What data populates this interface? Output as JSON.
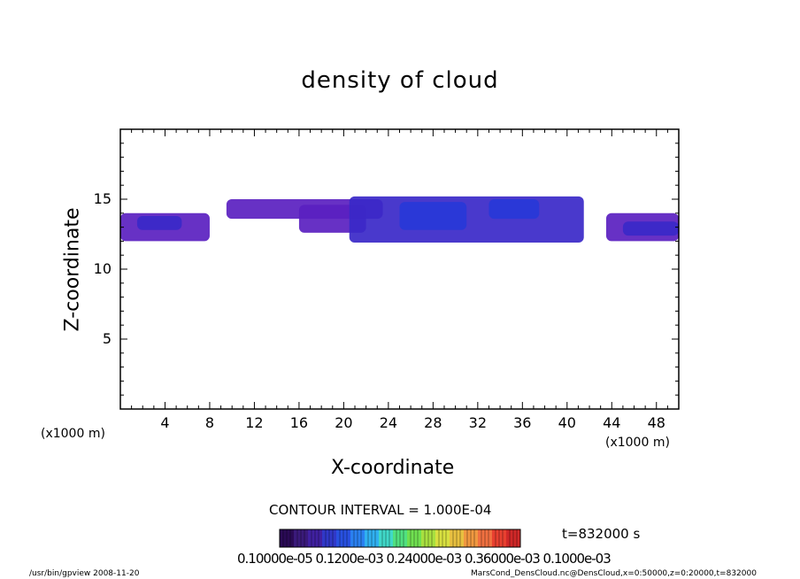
{
  "chart_data": {
    "type": "heatmap",
    "title": "density of cloud",
    "xlabel": "X-coordinate",
    "ylabel": "Z-coordinate",
    "x_unit": "(x1000 m)",
    "y_unit": "(x1000 m)",
    "xlim": [
      0,
      50
    ],
    "ylim": [
      0,
      20
    ],
    "xticks": [
      4,
      8,
      12,
      16,
      20,
      24,
      28,
      32,
      36,
      40,
      44,
      48
    ],
    "yticks": [
      5,
      10,
      15
    ],
    "grid": false,
    "contour_interval_label": "CONTOUR INTERVAL = 1.000E-04",
    "time_label": "t=832000 s",
    "colorbar_labels_text": "0.10000e-05 0.1200e-03 0.24000e-03 0.36000e-03 0.1000e-03",
    "colorbar_colors": [
      "#2a0a55",
      "#3a1a7a",
      "#4020a0",
      "#3038c8",
      "#2850e0",
      "#2a80f0",
      "#30b0f0",
      "#40d8c8",
      "#50e080",
      "#70e050",
      "#a8e040",
      "#d8e040",
      "#e8c040",
      "#f09840",
      "#f07040",
      "#e84030",
      "#d02828"
    ],
    "regions": [
      {
        "x0": 0.0,
        "x1": 8.0,
        "z0": 12.0,
        "z1": 14.0,
        "intensity": 0.35
      },
      {
        "x0": 1.5,
        "x1": 5.5,
        "z0": 12.8,
        "z1": 13.8,
        "intensity": 0.55
      },
      {
        "x0": 9.5,
        "x1": 23.5,
        "z0": 13.6,
        "z1": 15.0,
        "intensity": 0.2
      },
      {
        "x0": 16.0,
        "x1": 22.0,
        "z0": 12.6,
        "z1": 14.6,
        "intensity": 0.3
      },
      {
        "x0": 20.5,
        "x1": 41.5,
        "z0": 11.9,
        "z1": 15.2,
        "intensity": 0.5
      },
      {
        "x0": 25.0,
        "x1": 31.0,
        "z0": 12.8,
        "z1": 14.8,
        "intensity": 0.8
      },
      {
        "x0": 33.0,
        "x1": 37.5,
        "z0": 13.6,
        "z1": 15.0,
        "intensity": 0.7
      },
      {
        "x0": 43.5,
        "x1": 50.0,
        "z0": 12.0,
        "z1": 14.0,
        "intensity": 0.35
      },
      {
        "x0": 45.0,
        "x1": 50.0,
        "z0": 12.4,
        "z1": 13.4,
        "intensity": 0.55
      }
    ]
  },
  "footer": {
    "left": "/usr/bin/gpview  2008-11-20",
    "right": "MarsCond_DensCloud.nc@DensCloud,x=0:50000,z=0:20000,t=832000"
  },
  "colors": {
    "axis": "#000000",
    "background": "#ffffff"
  }
}
